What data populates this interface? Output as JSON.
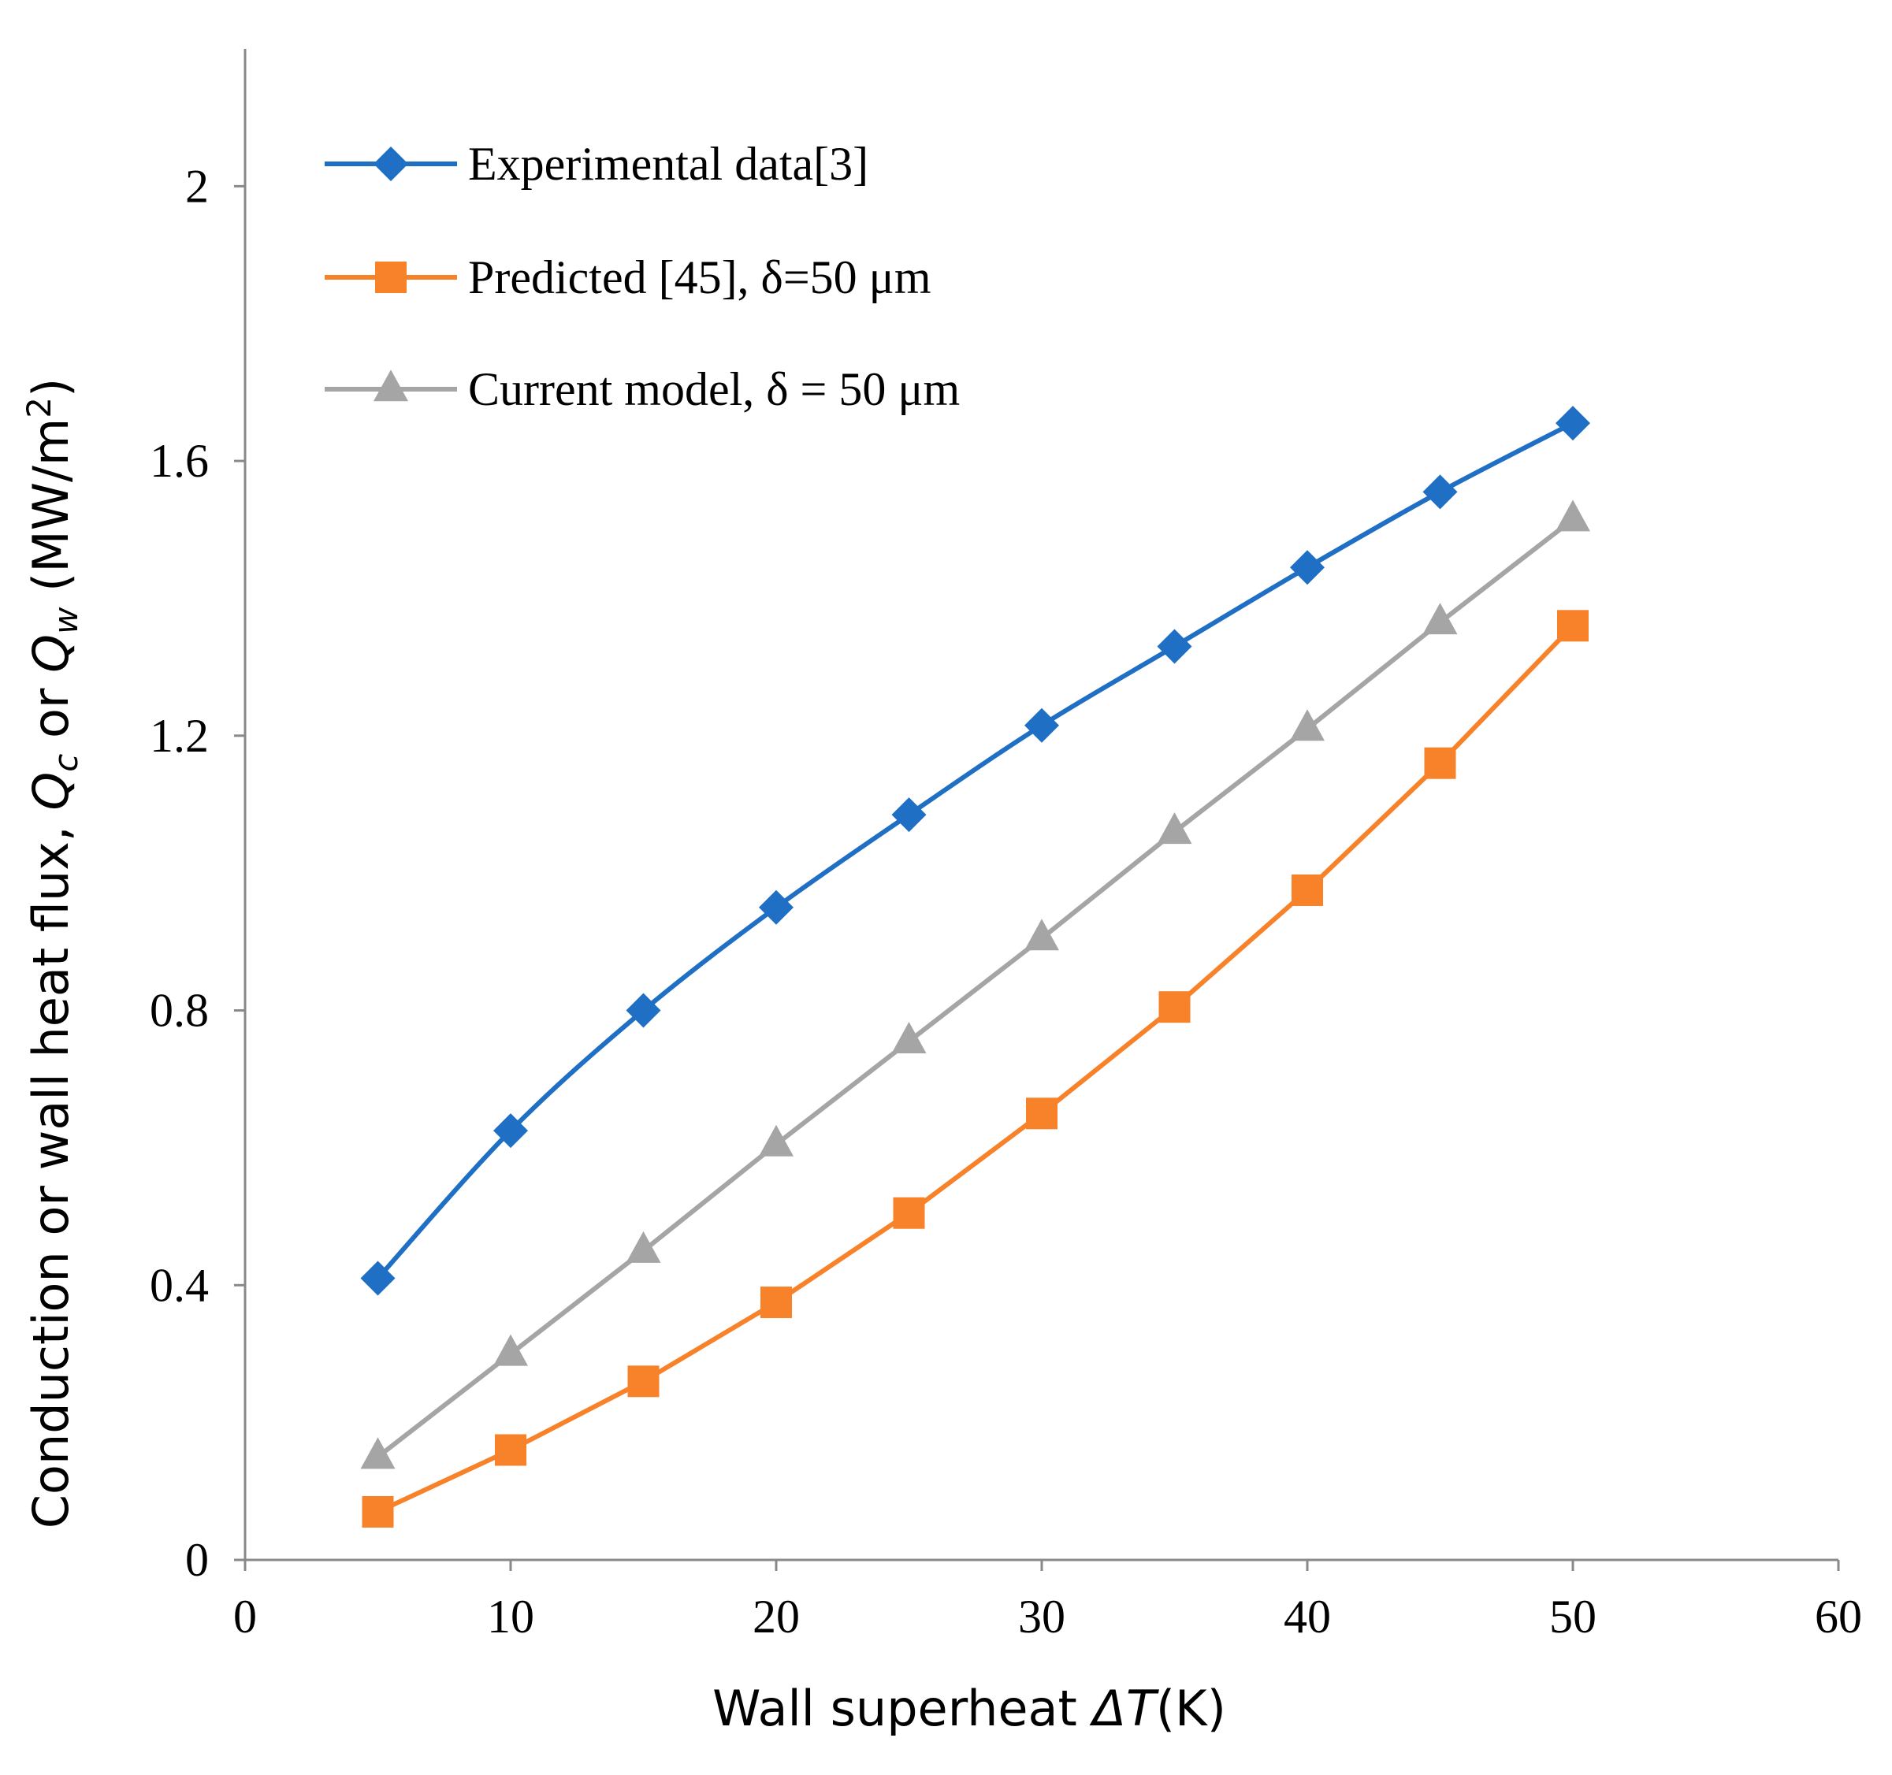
{
  "chart_data": {
    "type": "line",
    "xlabel": {
      "text": "Wall superheat ",
      "italic": "ΔT",
      "suffix": "(K)"
    },
    "ylabel": {
      "prefix": "Conduction or wall heat flux, ",
      "q1": "Q",
      "q1_sub": "c",
      "mid": " or ",
      "q2": "Q",
      "q2_sub": "w",
      "unit": " (MW/m",
      "unit_sup": "2",
      "unit_end": ")"
    },
    "xlim": [
      0,
      60
    ],
    "ylim": [
      0,
      2.2
    ],
    "x_ticks": [
      0,
      10,
      20,
      30,
      40,
      50,
      60
    ],
    "x_tick_labels": [
      "0",
      "10",
      "20",
      "30",
      "40",
      "50",
      "60"
    ],
    "y_ticks": [
      0,
      0.4,
      0.8,
      1.2,
      1.6,
      2.0
    ],
    "y_tick_labels": [
      "0",
      "0.4",
      "0.8",
      "1.2",
      "1.6",
      "2"
    ],
    "grid": false,
    "legend_position": "top-left",
    "x": [
      5,
      10,
      15,
      20,
      25,
      30,
      35,
      40,
      45,
      50
    ],
    "series": [
      {
        "name": "Experimental data[3]",
        "color": "#1f6fc5",
        "marker": "diamond",
        "smooth": true,
        "values": [
          0.41,
          0.625,
          0.8,
          0.95,
          1.085,
          1.215,
          1.33,
          1.445,
          1.555,
          1.655
        ]
      },
      {
        "name": "Predicted [45], δ=50 μm",
        "color": "#f7822a",
        "marker": "square",
        "smooth": false,
        "values": [
          0.07,
          0.16,
          0.26,
          0.375,
          0.505,
          0.65,
          0.805,
          0.975,
          1.16,
          1.36
        ]
      },
      {
        "name": "Current model, δ = 50 μm",
        "color": "#a5a5a5",
        "marker": "triangle",
        "smooth": false,
        "values": [
          0.15,
          0.3,
          0.45,
          0.605,
          0.755,
          0.905,
          1.06,
          1.21,
          1.365,
          1.515
        ]
      }
    ]
  }
}
